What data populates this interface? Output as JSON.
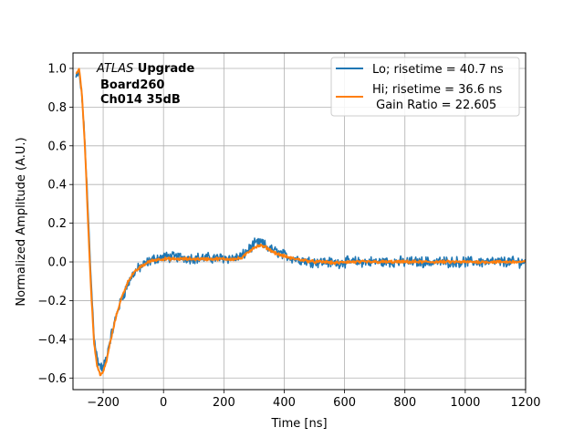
{
  "chart_data": {
    "type": "line",
    "xlabel": "Time [ns]",
    "ylabel": "Normalized Amplitude (A.U.)",
    "xlim": [
      -300,
      1200
    ],
    "ylim": [
      -0.66,
      1.08
    ],
    "xticks": [
      -200,
      0,
      200,
      400,
      600,
      800,
      1000,
      1200
    ],
    "yticks": [
      -0.6,
      -0.4,
      -0.2,
      0.0,
      0.2,
      0.4,
      0.6,
      0.8,
      1.0
    ],
    "xtick_labels": [
      "−200",
      "0",
      "200",
      "400",
      "600",
      "800",
      "1000",
      "1200"
    ],
    "ytick_labels": [
      "−0.6",
      "−0.4",
      "−0.2",
      "0.0",
      "0.2",
      "0.4",
      "0.6",
      "0.8",
      "1.0"
    ],
    "grid": true,
    "legend_position": "top-right",
    "annotation": {
      "experiment": "ATLAS",
      "experiment_suffix": " Upgrade",
      "line2": "Board260",
      "line3": "Ch014 35dB"
    },
    "series": [
      {
        "name": "Lo; risetime = 40.7 ns",
        "color": "#1f77b4",
        "noise": 0.022,
        "x": [
          -290,
          -280,
          -270,
          -260,
          -250,
          -240,
          -230,
          -220,
          -210,
          -200,
          -190,
          -180,
          -170,
          -160,
          -150,
          -140,
          -130,
          -120,
          -110,
          -100,
          -90,
          -80,
          -70,
          -60,
          -50,
          -40,
          -30,
          -20,
          -10,
          0,
          20,
          40,
          60,
          80,
          100,
          120,
          140,
          160,
          180,
          200,
          220,
          240,
          260,
          280,
          300,
          320,
          340,
          360,
          380,
          400,
          420,
          440,
          460,
          480,
          500,
          520,
          540,
          560,
          580,
          600,
          650,
          700,
          750,
          800,
          850,
          900,
          950,
          1000,
          1050,
          1100,
          1150,
          1200
        ],
        "y": [
          0.95,
          0.98,
          0.85,
          0.6,
          0.25,
          -0.1,
          -0.38,
          -0.5,
          -0.54,
          -0.55,
          -0.5,
          -0.42,
          -0.36,
          -0.3,
          -0.24,
          -0.2,
          -0.16,
          -0.12,
          -0.09,
          -0.06,
          -0.045,
          -0.03,
          -0.02,
          -0.01,
          0.0,
          0.01,
          0.015,
          0.02,
          0.022,
          0.025,
          0.025,
          0.025,
          0.025,
          0.02,
          0.02,
          0.02,
          0.02,
          0.02,
          0.02,
          0.02,
          0.02,
          0.02,
          0.03,
          0.06,
          0.09,
          0.1,
          0.08,
          0.06,
          0.05,
          0.035,
          0.025,
          0.015,
          0.01,
          0.005,
          0.0,
          0.0,
          0.0,
          -0.005,
          -0.005,
          0.0,
          0.0,
          0.0,
          0.0,
          0.0,
          0.0,
          0.0,
          0.0,
          0.0,
          0.0,
          0.0,
          0.0,
          0.0
        ]
      },
      {
        "name": "Hi; risetime = 36.6 ns\n Gain Ratio = 22.605",
        "color": "#ff7f0e",
        "noise": 0.006,
        "x": [
          -290,
          -280,
          -270,
          -260,
          -250,
          -240,
          -230,
          -220,
          -210,
          -200,
          -190,
          -180,
          -170,
          -160,
          -150,
          -140,
          -130,
          -120,
          -110,
          -100,
          -90,
          -80,
          -70,
          -60,
          -50,
          -40,
          -30,
          -20,
          -10,
          0,
          20,
          40,
          60,
          80,
          100,
          120,
          140,
          160,
          180,
          200,
          220,
          240,
          260,
          280,
          300,
          320,
          340,
          360,
          380,
          400,
          420,
          440,
          460,
          480,
          500,
          520,
          540,
          560,
          580,
          600,
          650,
          700,
          750,
          800,
          850,
          900,
          950,
          1000,
          1050,
          1100,
          1150,
          1200
        ],
        "y": [
          0.97,
          1.0,
          0.86,
          0.58,
          0.2,
          -0.15,
          -0.42,
          -0.54,
          -0.58,
          -0.57,
          -0.52,
          -0.44,
          -0.37,
          -0.3,
          -0.24,
          -0.19,
          -0.15,
          -0.11,
          -0.08,
          -0.06,
          -0.045,
          -0.03,
          -0.02,
          -0.01,
          0.0,
          0.005,
          0.01,
          0.012,
          0.015,
          0.015,
          0.015,
          0.015,
          0.015,
          0.015,
          0.015,
          0.015,
          0.015,
          0.015,
          0.015,
          0.015,
          0.015,
          0.015,
          0.02,
          0.05,
          0.075,
          0.085,
          0.075,
          0.055,
          0.04,
          0.03,
          0.02,
          0.015,
          0.01,
          0.005,
          0.0,
          0.0,
          0.0,
          -0.005,
          -0.005,
          0.0,
          0.0,
          0.0,
          0.0,
          0.0,
          0.0,
          0.0,
          0.0,
          0.0,
          0.0,
          0.0,
          0.0,
          0.0
        ]
      }
    ]
  }
}
